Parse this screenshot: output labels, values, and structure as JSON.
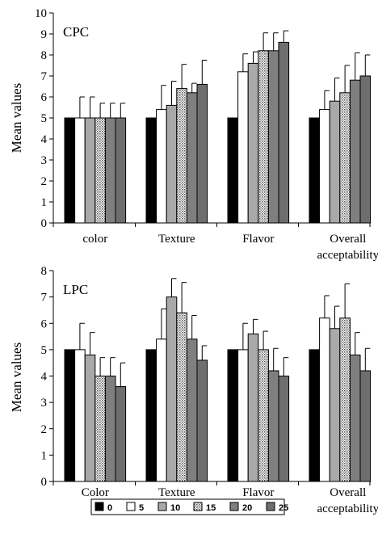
{
  "chart_data": [
    {
      "type": "bar",
      "title": "CPC",
      "ylabel": "Mean values",
      "xlabel": "",
      "ylim": [
        0,
        10
      ],
      "yticks": [
        0,
        1,
        2,
        3,
        4,
        5,
        6,
        7,
        8,
        9,
        10
      ],
      "categories": [
        "color",
        "Texture",
        "Flavor",
        "Overall\nacceptability"
      ],
      "grid": false,
      "series": [
        {
          "name": "0",
          "values": [
            5,
            5,
            5,
            5
          ],
          "errors": [
            0,
            0,
            0,
            0
          ]
        },
        {
          "name": "5",
          "values": [
            5,
            5.4,
            7.2,
            5.4
          ],
          "errors": [
            1.0,
            1.15,
            0.85,
            0.9
          ]
        },
        {
          "name": "10",
          "values": [
            5,
            5.6,
            7.6,
            5.8
          ],
          "errors": [
            1.0,
            1.15,
            0.55,
            1.1
          ]
        },
        {
          "name": "15",
          "values": [
            5,
            6.4,
            8.2,
            6.2
          ],
          "errors": [
            0.7,
            1.15,
            0.85,
            1.3
          ]
        },
        {
          "name": "20",
          "values": [
            5,
            6.2,
            8.2,
            6.8
          ],
          "errors": [
            0.7,
            0.45,
            0.85,
            1.3
          ]
        },
        {
          "name": "25",
          "values": [
            5,
            6.6,
            8.6,
            7.0
          ],
          "errors": [
            0.7,
            1.15,
            0.55,
            1.0
          ]
        }
      ]
    },
    {
      "type": "bar",
      "title": "LPC",
      "ylabel": "Mean values",
      "xlabel": "",
      "ylim": [
        0,
        8
      ],
      "yticks": [
        0,
        1,
        2,
        3,
        4,
        5,
        6,
        7,
        8
      ],
      "categories": [
        "Color",
        "Texture",
        "Flavor",
        "Overall\nacceptability"
      ],
      "grid": false,
      "series": [
        {
          "name": "0",
          "values": [
            5,
            5,
            5,
            5
          ],
          "errors": [
            0,
            0,
            0,
            0
          ]
        },
        {
          "name": "5",
          "values": [
            5,
            5.4,
            5,
            6.2
          ],
          "errors": [
            1.0,
            1.15,
            1.0,
            0.85
          ]
        },
        {
          "name": "10",
          "values": [
            4.8,
            7.0,
            5.6,
            5.8
          ],
          "errors": [
            0.85,
            0.7,
            0.55,
            0.85
          ]
        },
        {
          "name": "15",
          "values": [
            4,
            6.4,
            5,
            6.2
          ],
          "errors": [
            0.7,
            1.15,
            0.7,
            1.3
          ]
        },
        {
          "name": "20",
          "values": [
            4,
            5.4,
            4.2,
            4.8
          ],
          "errors": [
            0.7,
            0.9,
            0.85,
            0.85
          ]
        },
        {
          "name": "25",
          "values": [
            3.6,
            4.6,
            4.0,
            4.2
          ],
          "errors": [
            0.9,
            0.55,
            0.7,
            0.85
          ]
        }
      ]
    }
  ],
  "legend": {
    "placement": "bottom",
    "entries": [
      "0",
      "5",
      "10",
      "15",
      "20",
      "25"
    ]
  },
  "colors": {
    "0": "#000000",
    "5": "#ffffff",
    "10": "#a9a9a9",
    "15": "dotted",
    "20": "#7f7f7f",
    "25": "#6e6e6e",
    "axis": "#000000"
  }
}
